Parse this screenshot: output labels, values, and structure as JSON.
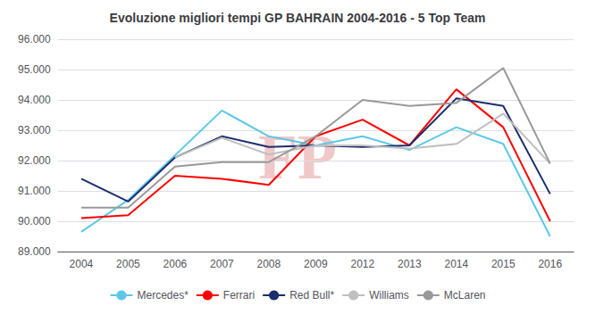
{
  "chart_data": {
    "type": "line",
    "title": "Evoluzione migliori tempi GP BAHRAIN 2004-2016 - 5 Top Team",
    "categories": [
      "2004",
      "2005",
      "2006",
      "2007",
      "2008",
      "2009",
      "2012",
      "2013",
      "2014",
      "2015",
      "2016"
    ],
    "series": [
      {
        "name": "Mercedes*",
        "color": "#5BC8E8",
        "values": [
          89650,
          90700,
          null,
          93650,
          92800,
          92500,
          92800,
          92350,
          93100,
          92550,
          89500
        ]
      },
      {
        "name": "Ferrari",
        "color": "#FF0000",
        "values": [
          90100,
          90200,
          91500,
          91400,
          91200,
          92800,
          93350,
          92500,
          94350,
          93100,
          90000
        ]
      },
      {
        "name": "Red Bull*",
        "color": "#1C2D6B",
        "values": [
          91400,
          90650,
          92100,
          92800,
          92450,
          92500,
          92450,
          92500,
          94050,
          93800,
          90900
        ]
      },
      {
        "name": "Williams",
        "color": "#C0C0C0",
        "values": [
          null,
          null,
          92100,
          92750,
          92200,
          92500,
          92500,
          92400,
          92550,
          93550,
          91900
        ]
      },
      {
        "name": "McLaren",
        "color": "#999999",
        "values": [
          90450,
          90450,
          91800,
          91950,
          91950,
          92800,
          94000,
          93800,
          93900,
          95050,
          91900
        ]
      }
    ],
    "ylim": [
      89000,
      96000
    ],
    "yticks": [
      {
        "value": 89000,
        "label": "89.000"
      },
      {
        "value": 90000,
        "label": "90.000"
      },
      {
        "value": 91000,
        "label": "91.000"
      },
      {
        "value": 92000,
        "label": "92.000"
      },
      {
        "value": 93000,
        "label": "93.000"
      },
      {
        "value": 94000,
        "label": "94.000"
      },
      {
        "value": 95000,
        "label": "95.000"
      },
      {
        "value": 96000,
        "label": "96.000"
      }
    ],
    "grid": true,
    "legend": "bottom",
    "annotations": [
      {
        "text": "FP",
        "color": "#F0C8C8"
      }
    ]
  }
}
